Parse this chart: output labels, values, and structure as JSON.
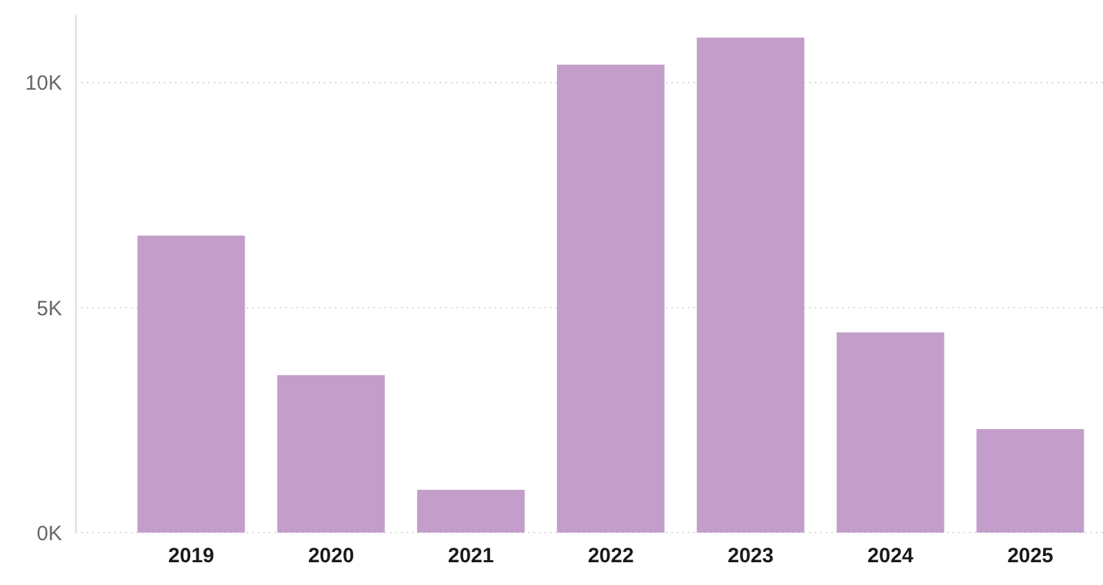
{
  "chart_data": {
    "type": "bar",
    "categories": [
      "2019",
      "2020",
      "2021",
      "2022",
      "2023",
      "2024",
      "2025"
    ],
    "values": [
      6600,
      3500,
      950,
      10400,
      11000,
      4450,
      2300
    ],
    "color": "#c39ecb",
    "ylim": [
      0,
      11500
    ],
    "yticks": [
      {
        "value": 0,
        "label": "0K"
      },
      {
        "value": 5000,
        "label": "5K"
      },
      {
        "value": 10000,
        "label": "10K"
      }
    ],
    "grid": "y"
  }
}
